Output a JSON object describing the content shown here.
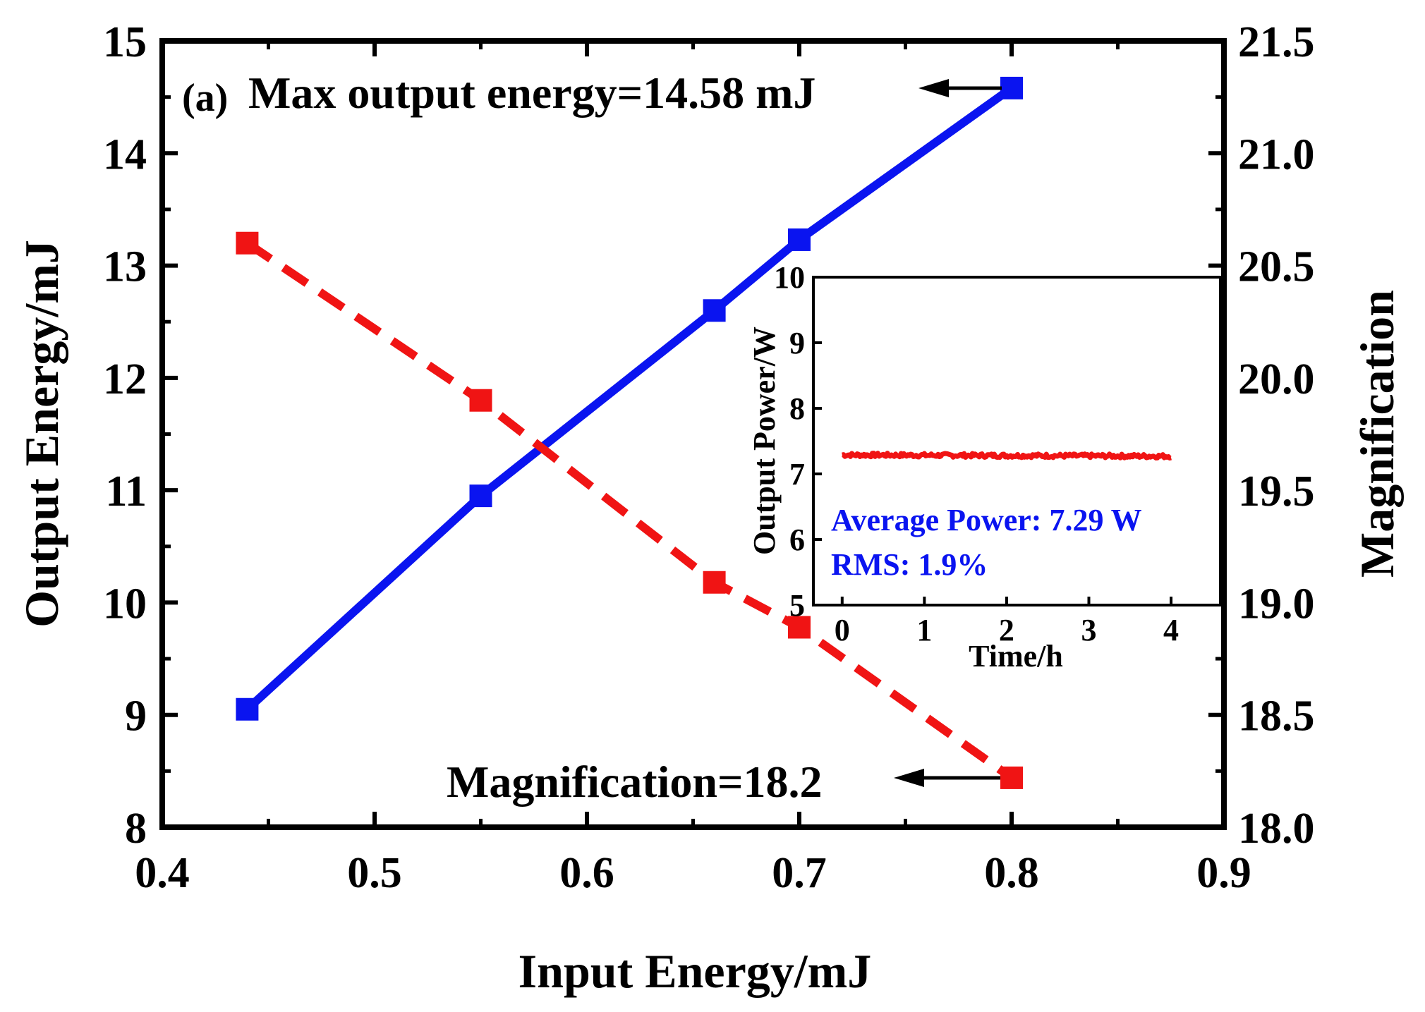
{
  "chart_data": [
    {
      "type": "line",
      "panel_label": "(a)",
      "xlabel": "Input Energy/mJ",
      "ylabel": "Output Energy/mJ",
      "y2label": "Magnification",
      "xlim": [
        0.4,
        0.9
      ],
      "ylim": [
        8,
        15
      ],
      "y2lim": [
        18.0,
        21.5
      ],
      "x_ticks": [
        "0.4",
        "0.5",
        "0.6",
        "0.7",
        "0.8",
        "0.9"
      ],
      "y_ticks": [
        "8",
        "9",
        "10",
        "11",
        "12",
        "13",
        "14",
        "15"
      ],
      "y2_ticks": [
        "18.0",
        "18.5",
        "19.0",
        "19.5",
        "20.0",
        "20.5",
        "21.0",
        "21.5"
      ],
      "series": [
        {
          "name": "Output Energy",
          "axis": "left",
          "color": "#0a14f0",
          "line_style": "solid",
          "x": [
            0.44,
            0.55,
            0.66,
            0.7,
            0.8
          ],
          "values": [
            9.05,
            10.95,
            12.6,
            13.23,
            14.58
          ]
        },
        {
          "name": "Magnification",
          "axis": "right",
          "color": "#f01414",
          "line_style": "dashed",
          "x": [
            0.44,
            0.55,
            0.66,
            0.7,
            0.8
          ],
          "values": [
            20.6,
            19.9,
            19.09,
            18.89,
            18.22
          ]
        }
      ],
      "annotations": [
        {
          "text": "Max output energy=14.58 mJ",
          "points_to_series": "Output Energy"
        },
        {
          "text": "Magnification=18.2",
          "points_to_series": "Magnification"
        }
      ]
    },
    {
      "type": "line",
      "role": "inset",
      "xlabel": "Time/h",
      "ylabel": "Output Power/W",
      "xlim": [
        -0.35,
        4.6
      ],
      "ylim": [
        5,
        10
      ],
      "x_ticks": [
        "0",
        "1",
        "2",
        "3",
        "4"
      ],
      "y_ticks": [
        "5",
        "6",
        "7",
        "8",
        "9",
        "10"
      ],
      "series": [
        {
          "name": "Output Power",
          "color": "#f01414",
          "x_range": [
            0,
            4
          ],
          "mean": 7.29,
          "noise_amplitude": 0.03
        }
      ],
      "annotations": [
        {
          "text": "Average Power: 7.29 W",
          "color": "#0a14f0"
        },
        {
          "text": "RMS: 1.9%",
          "color": "#0a14f0"
        }
      ]
    }
  ]
}
